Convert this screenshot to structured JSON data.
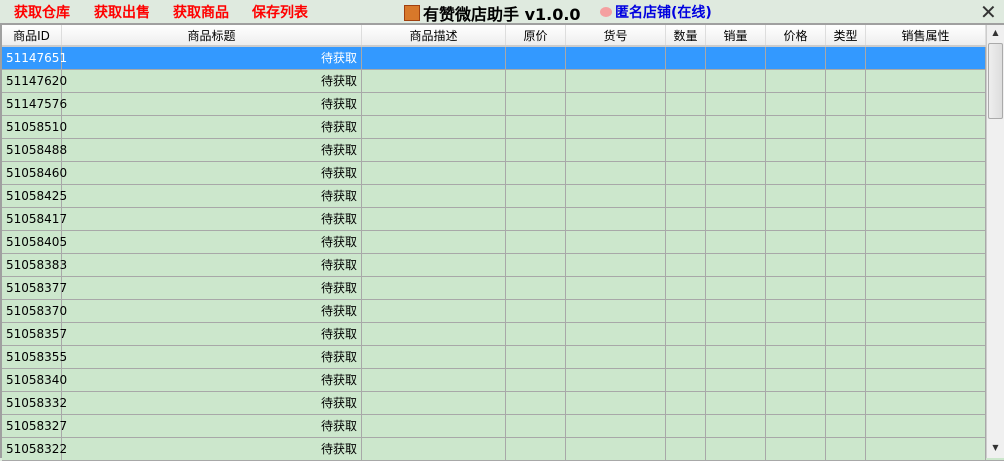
{
  "toolbar": {
    "buttons": [
      "获取仓库",
      "获取出售",
      "获取商品",
      "保存列表"
    ]
  },
  "app": {
    "title": "有赞微店助手 v1.0.0",
    "shop": "匿名店铺(在线)",
    "close_icon": "close-x-icon"
  },
  "colors": {
    "selected": "#3399ff",
    "row": "#cce7cc",
    "toolbar_text": "#ff0000",
    "shop_text": "#0000e0"
  },
  "table": {
    "columns": [
      "商品ID",
      "商品标题",
      "商品描述",
      "原价",
      "货号",
      "数量",
      "销量",
      "价格",
      "类型",
      "销售属性"
    ],
    "placeholder": "待获取",
    "selected_index": 0,
    "ids": [
      "51147651",
      "51147620",
      "51147576",
      "51058510",
      "51058488",
      "51058460",
      "51058425",
      "51058417",
      "51058405",
      "51058383",
      "51058377",
      "51058370",
      "51058357",
      "51058355",
      "51058340",
      "51058332",
      "51058327",
      "51058322"
    ]
  }
}
